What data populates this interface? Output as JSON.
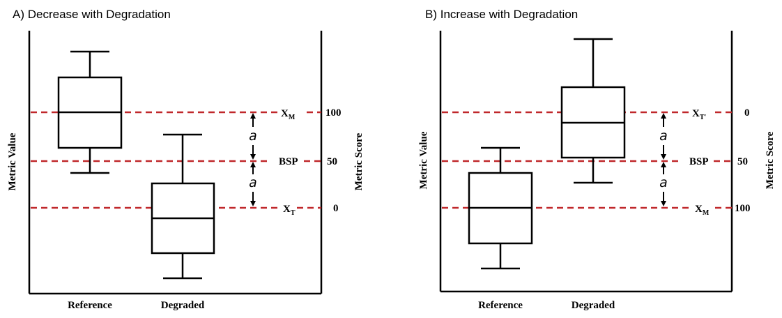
{
  "panels": [
    {
      "id": "A",
      "title": "A) Decrease with Degradation",
      "y_axis_label": "Metric Value",
      "score_axis_label": "Metric Score",
      "x_labels": [
        "Reference",
        "Degraded"
      ],
      "lines": [
        {
          "label": "X",
          "sub": "M",
          "score": "100"
        },
        {
          "label": "BSP",
          "sub": "",
          "score": "50"
        },
        {
          "label": "X",
          "sub": "T",
          "score": "0"
        }
      ],
      "interval_label": "a"
    },
    {
      "id": "B",
      "title": "B) Increase with Degradation",
      "y_axis_label": "Metric Value",
      "score_axis_label": "Metric Score",
      "x_labels": [
        "Reference",
        "Degraded"
      ],
      "lines": [
        {
          "label": "X",
          "sub": "T'",
          "score": "0"
        },
        {
          "label": "BSP",
          "sub": "",
          "score": "50"
        },
        {
          "label": "X",
          "sub": "M",
          "score": "100"
        }
      ],
      "interval_label": "a"
    }
  ],
  "colors": {
    "dashed_line": "#c0282b",
    "ink": "#000000"
  }
}
